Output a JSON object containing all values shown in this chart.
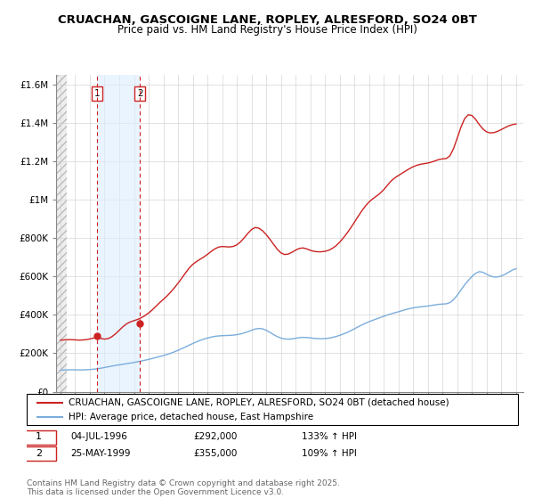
{
  "title": "CRUACHAN, GASCOIGNE LANE, ROPLEY, ALRESFORD, SO24 0BT",
  "subtitle": "Price paid vs. HM Land Registry's House Price Index (HPI)",
  "ylabel_ticks": [
    "£0",
    "£200K",
    "£400K",
    "£600K",
    "£800K",
    "£1M",
    "£1.2M",
    "£1.4M",
    "£1.6M"
  ],
  "ytick_vals": [
    0,
    200000,
    400000,
    600000,
    800000,
    1000000,
    1200000,
    1400000,
    1600000
  ],
  "ylim": [
    0,
    1650000
  ],
  "xlim_start": 1994.0,
  "xlim_end": 2025.5,
  "sale1_x": 1996.5,
  "sale1_y": 292000,
  "sale2_x": 1999.4,
  "sale2_y": 355000,
  "sale1_label": "1",
  "sale2_label": "2",
  "sale1_date": "04-JUL-1996",
  "sale1_price": "£292,000",
  "sale1_hpi": "133% ↑ HPI",
  "sale2_date": "25-MAY-1999",
  "sale2_price": "£355,000",
  "sale2_hpi": "109% ↑ HPI",
  "hpi_line_color": "#7aaddc",
  "price_line_color": "#cc2222",
  "vline1_color": "#cc2222",
  "vline2_color": "#cc2222",
  "shade_color": "#ddeeff",
  "legend_line1": "CRUACHAN, GASCOIGNE LANE, ROPLEY, ALRESFORD, SO24 0BT (detached house)",
  "legend_line2": "HPI: Average price, detached house, East Hampshire",
  "footer": "Contains HM Land Registry data © Crown copyright and database right 2025.\nThis data is licensed under the Open Government Licence v3.0.",
  "title_fontsize": 9.5,
  "subtitle_fontsize": 8.5,
  "tick_fontsize": 7.5,
  "legend_fontsize": 7.5,
  "footer_fontsize": 6.5,
  "hpi_years": [
    1994.0,
    1994.25,
    1994.5,
    1994.75,
    1995.0,
    1995.25,
    1995.5,
    1995.75,
    1996.0,
    1996.25,
    1996.5,
    1996.75,
    1997.0,
    1997.25,
    1997.5,
    1997.75,
    1998.0,
    1998.25,
    1998.5,
    1998.75,
    1999.0,
    1999.25,
    1999.5,
    1999.75,
    2000.0,
    2000.25,
    2000.5,
    2000.75,
    2001.0,
    2001.25,
    2001.5,
    2001.75,
    2002.0,
    2002.25,
    2002.5,
    2002.75,
    2003.0,
    2003.25,
    2003.5,
    2003.75,
    2004.0,
    2004.25,
    2004.5,
    2004.75,
    2005.0,
    2005.25,
    2005.5,
    2005.75,
    2006.0,
    2006.25,
    2006.5,
    2006.75,
    2007.0,
    2007.25,
    2007.5,
    2007.75,
    2008.0,
    2008.25,
    2008.5,
    2008.75,
    2009.0,
    2009.25,
    2009.5,
    2009.75,
    2010.0,
    2010.25,
    2010.5,
    2010.75,
    2011.0,
    2011.25,
    2011.5,
    2011.75,
    2012.0,
    2012.25,
    2012.5,
    2012.75,
    2013.0,
    2013.25,
    2013.5,
    2013.75,
    2014.0,
    2014.25,
    2014.5,
    2014.75,
    2015.0,
    2015.25,
    2015.5,
    2015.75,
    2016.0,
    2016.25,
    2016.5,
    2016.75,
    2017.0,
    2017.25,
    2017.5,
    2017.75,
    2018.0,
    2018.25,
    2018.5,
    2018.75,
    2019.0,
    2019.25,
    2019.5,
    2019.75,
    2020.0,
    2020.25,
    2020.5,
    2020.75,
    2021.0,
    2021.25,
    2021.5,
    2021.75,
    2022.0,
    2022.25,
    2022.5,
    2022.75,
    2023.0,
    2023.25,
    2023.5,
    2023.75,
    2024.0,
    2024.25,
    2024.5,
    2024.75,
    2025.0
  ],
  "hpi_vals": [
    112000,
    113000,
    114000,
    115000,
    114000,
    113000,
    113500,
    114000,
    115000,
    117000,
    119000,
    122000,
    126000,
    130000,
    134000,
    137000,
    140000,
    143000,
    146000,
    149000,
    152000,
    156000,
    160000,
    164000,
    168000,
    173000,
    178000,
    183000,
    188000,
    194000,
    200000,
    207000,
    215000,
    224000,
    233000,
    242000,
    251000,
    260000,
    268000,
    274000,
    280000,
    285000,
    289000,
    291000,
    292000,
    292500,
    293000,
    294000,
    296000,
    300000,
    305000,
    312000,
    320000,
    328000,
    333000,
    330000,
    322000,
    310000,
    297000,
    285000,
    278000,
    274000,
    272000,
    274000,
    278000,
    282000,
    285000,
    283000,
    280000,
    278000,
    276000,
    275000,
    276000,
    278000,
    282000,
    287000,
    293000,
    300000,
    308000,
    317000,
    327000,
    338000,
    348000,
    357000,
    365000,
    372000,
    379000,
    386000,
    393000,
    400000,
    406000,
    411000,
    416000,
    422000,
    428000,
    433000,
    437000,
    440000,
    442000,
    444000,
    446000,
    449000,
    452000,
    456000,
    458000,
    455000,
    458000,
    475000,
    500000,
    530000,
    558000,
    580000,
    600000,
    620000,
    635000,
    625000,
    610000,
    600000,
    595000,
    595000,
    600000,
    610000,
    622000,
    635000,
    645000
  ],
  "price_years": [
    1994.0,
    1994.25,
    1994.5,
    1994.75,
    1995.0,
    1995.25,
    1995.5,
    1995.75,
    1996.0,
    1996.25,
    1996.5,
    1996.75,
    1997.0,
    1997.25,
    1997.5,
    1997.75,
    1998.0,
    1998.25,
    1998.5,
    1998.75,
    1999.0,
    1999.25,
    1999.5,
    1999.75,
    2000.0,
    2000.25,
    2000.5,
    2000.75,
    2001.0,
    2001.25,
    2001.5,
    2001.75,
    2002.0,
    2002.25,
    2002.5,
    2002.75,
    2003.0,
    2003.25,
    2003.5,
    2003.75,
    2004.0,
    2004.25,
    2004.5,
    2004.75,
    2005.0,
    2005.25,
    2005.5,
    2005.75,
    2006.0,
    2006.25,
    2006.5,
    2006.75,
    2007.0,
    2007.25,
    2007.5,
    2007.75,
    2008.0,
    2008.25,
    2008.5,
    2008.75,
    2009.0,
    2009.25,
    2009.5,
    2009.75,
    2010.0,
    2010.25,
    2010.5,
    2010.75,
    2011.0,
    2011.25,
    2011.5,
    2011.75,
    2012.0,
    2012.25,
    2012.5,
    2012.75,
    2013.0,
    2013.25,
    2013.5,
    2013.75,
    2014.0,
    2014.25,
    2014.5,
    2014.75,
    2015.0,
    2015.25,
    2015.5,
    2015.75,
    2016.0,
    2016.25,
    2016.5,
    2016.75,
    2017.0,
    2017.25,
    2017.5,
    2017.75,
    2018.0,
    2018.25,
    2018.5,
    2018.75,
    2019.0,
    2019.25,
    2019.5,
    2019.75,
    2020.0,
    2020.25,
    2020.5,
    2020.75,
    2021.0,
    2021.25,
    2021.5,
    2021.75,
    2022.0,
    2022.25,
    2022.5,
    2022.75,
    2023.0,
    2023.25,
    2023.5,
    2023.75,
    2024.0,
    2024.25,
    2024.5,
    2024.75,
    2025.0
  ],
  "price_vals": [
    268000,
    270000,
    271000,
    272000,
    270000,
    268000,
    269000,
    271000,
    274000,
    280000,
    285000,
    278000,
    270000,
    275000,
    285000,
    300000,
    320000,
    340000,
    355000,
    365000,
    370000,
    375000,
    385000,
    395000,
    410000,
    425000,
    445000,
    465000,
    480000,
    498000,
    518000,
    540000,
    565000,
    590000,
    618000,
    645000,
    665000,
    678000,
    690000,
    700000,
    715000,
    730000,
    745000,
    755000,
    758000,
    755000,
    752000,
    755000,
    762000,
    778000,
    800000,
    825000,
    848000,
    860000,
    855000,
    840000,
    820000,
    795000,
    768000,
    740000,
    720000,
    710000,
    715000,
    725000,
    738000,
    748000,
    752000,
    745000,
    735000,
    730000,
    728000,
    728000,
    730000,
    735000,
    745000,
    758000,
    778000,
    800000,
    825000,
    852000,
    882000,
    912000,
    942000,
    968000,
    990000,
    1005000,
    1018000,
    1032000,
    1050000,
    1075000,
    1100000,
    1115000,
    1125000,
    1138000,
    1150000,
    1162000,
    1172000,
    1180000,
    1185000,
    1188000,
    1190000,
    1195000,
    1202000,
    1210000,
    1215000,
    1210000,
    1218000,
    1260000,
    1320000,
    1380000,
    1430000,
    1450000,
    1445000,
    1420000,
    1390000,
    1365000,
    1350000,
    1345000,
    1348000,
    1355000,
    1365000,
    1375000,
    1385000,
    1392000,
    1395000
  ]
}
